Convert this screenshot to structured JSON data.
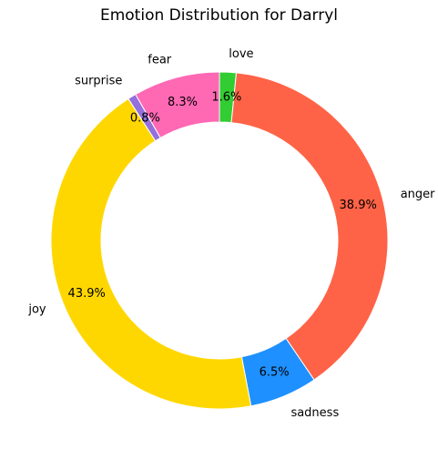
{
  "chart_data": {
    "type": "pie",
    "style": "donut",
    "title": "Emotion Distribution for Darryl",
    "start_angle_deg": 90,
    "direction": "clockwise",
    "slices": [
      {
        "label": "love",
        "value": 1.6,
        "display": "1.6%",
        "color": "#32cd32"
      },
      {
        "label": "anger",
        "value": 38.9,
        "display": "38.9%",
        "color": "#ff6347"
      },
      {
        "label": "sadness",
        "value": 6.5,
        "display": "6.5%",
        "color": "#1e90ff"
      },
      {
        "label": "joy",
        "value": 43.9,
        "display": "43.9%",
        "color": "#ffd700"
      },
      {
        "label": "surprise",
        "value": 0.8,
        "display": "0.8%",
        "color": "#9370db"
      },
      {
        "label": "fear",
        "value": 8.3,
        "display": "8.3%",
        "color": "#ff69b4"
      }
    ]
  }
}
